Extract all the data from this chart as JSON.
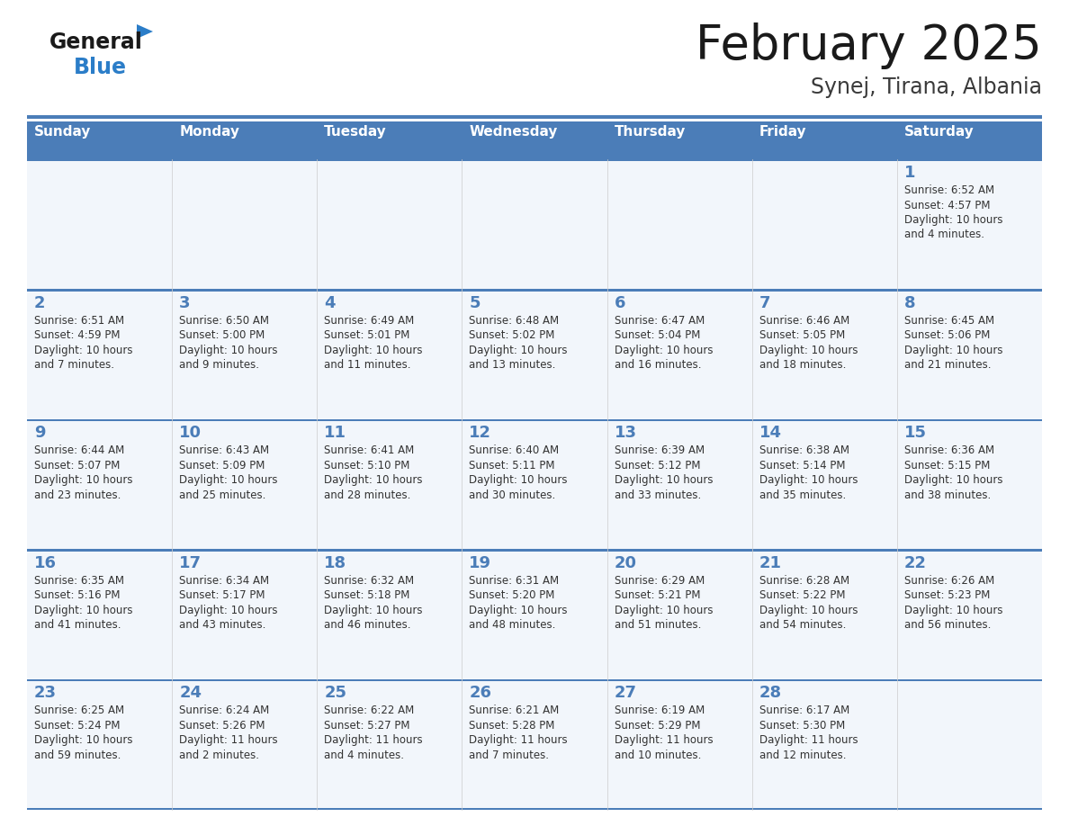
{
  "title": "February 2025",
  "subtitle": "Synej, Tirana, Albania",
  "days_of_week": [
    "Sunday",
    "Monday",
    "Tuesday",
    "Wednesday",
    "Thursday",
    "Friday",
    "Saturday"
  ],
  "header_bg": "#4b7db8",
  "header_text": "#ffffff",
  "cell_bg": "#f2f6fb",
  "border_color": "#4b7db8",
  "day_number_color": "#4b7db8",
  "text_color": "#333333",
  "logo_general_color": "#1a1a1a",
  "logo_blue_color": "#2b7dc8",
  "logo_triangle_color": "#2b7dc8",
  "calendar_data": [
    [
      null,
      null,
      null,
      null,
      null,
      null,
      {
        "day": "1",
        "sunrise": "6:52 AM",
        "sunset": "4:57 PM",
        "daylight": "10 hours",
        "daylight2": "and 4 minutes."
      }
    ],
    [
      {
        "day": "2",
        "sunrise": "6:51 AM",
        "sunset": "4:59 PM",
        "daylight": "10 hours",
        "daylight2": "and 7 minutes."
      },
      {
        "day": "3",
        "sunrise": "6:50 AM",
        "sunset": "5:00 PM",
        "daylight": "10 hours",
        "daylight2": "and 9 minutes."
      },
      {
        "day": "4",
        "sunrise": "6:49 AM",
        "sunset": "5:01 PM",
        "daylight": "10 hours",
        "daylight2": "and 11 minutes."
      },
      {
        "day": "5",
        "sunrise": "6:48 AM",
        "sunset": "5:02 PM",
        "daylight": "10 hours",
        "daylight2": "and 13 minutes."
      },
      {
        "day": "6",
        "sunrise": "6:47 AM",
        "sunset": "5:04 PM",
        "daylight": "10 hours",
        "daylight2": "and 16 minutes."
      },
      {
        "day": "7",
        "sunrise": "6:46 AM",
        "sunset": "5:05 PM",
        "daylight": "10 hours",
        "daylight2": "and 18 minutes."
      },
      {
        "day": "8",
        "sunrise": "6:45 AM",
        "sunset": "5:06 PM",
        "daylight": "10 hours",
        "daylight2": "and 21 minutes."
      }
    ],
    [
      {
        "day": "9",
        "sunrise": "6:44 AM",
        "sunset": "5:07 PM",
        "daylight": "10 hours",
        "daylight2": "and 23 minutes."
      },
      {
        "day": "10",
        "sunrise": "6:43 AM",
        "sunset": "5:09 PM",
        "daylight": "10 hours",
        "daylight2": "and 25 minutes."
      },
      {
        "day": "11",
        "sunrise": "6:41 AM",
        "sunset": "5:10 PM",
        "daylight": "10 hours",
        "daylight2": "and 28 minutes."
      },
      {
        "day": "12",
        "sunrise": "6:40 AM",
        "sunset": "5:11 PM",
        "daylight": "10 hours",
        "daylight2": "and 30 minutes."
      },
      {
        "day": "13",
        "sunrise": "6:39 AM",
        "sunset": "5:12 PM",
        "daylight": "10 hours",
        "daylight2": "and 33 minutes."
      },
      {
        "day": "14",
        "sunrise": "6:38 AM",
        "sunset": "5:14 PM",
        "daylight": "10 hours",
        "daylight2": "and 35 minutes."
      },
      {
        "day": "15",
        "sunrise": "6:36 AM",
        "sunset": "5:15 PM",
        "daylight": "10 hours",
        "daylight2": "and 38 minutes."
      }
    ],
    [
      {
        "day": "16",
        "sunrise": "6:35 AM",
        "sunset": "5:16 PM",
        "daylight": "10 hours",
        "daylight2": "and 41 minutes."
      },
      {
        "day": "17",
        "sunrise": "6:34 AM",
        "sunset": "5:17 PM",
        "daylight": "10 hours",
        "daylight2": "and 43 minutes."
      },
      {
        "day": "18",
        "sunrise": "6:32 AM",
        "sunset": "5:18 PM",
        "daylight": "10 hours",
        "daylight2": "and 46 minutes."
      },
      {
        "day": "19",
        "sunrise": "6:31 AM",
        "sunset": "5:20 PM",
        "daylight": "10 hours",
        "daylight2": "and 48 minutes."
      },
      {
        "day": "20",
        "sunrise": "6:29 AM",
        "sunset": "5:21 PM",
        "daylight": "10 hours",
        "daylight2": "and 51 minutes."
      },
      {
        "day": "21",
        "sunrise": "6:28 AM",
        "sunset": "5:22 PM",
        "daylight": "10 hours",
        "daylight2": "and 54 minutes."
      },
      {
        "day": "22",
        "sunrise": "6:26 AM",
        "sunset": "5:23 PM",
        "daylight": "10 hours",
        "daylight2": "and 56 minutes."
      }
    ],
    [
      {
        "day": "23",
        "sunrise": "6:25 AM",
        "sunset": "5:24 PM",
        "daylight": "10 hours",
        "daylight2": "and 59 minutes."
      },
      {
        "day": "24",
        "sunrise": "6:24 AM",
        "sunset": "5:26 PM",
        "daylight": "11 hours",
        "daylight2": "and 2 minutes."
      },
      {
        "day": "25",
        "sunrise": "6:22 AM",
        "sunset": "5:27 PM",
        "daylight": "11 hours",
        "daylight2": "and 4 minutes."
      },
      {
        "day": "26",
        "sunrise": "6:21 AM",
        "sunset": "5:28 PM",
        "daylight": "11 hours",
        "daylight2": "and 7 minutes."
      },
      {
        "day": "27",
        "sunrise": "6:19 AM",
        "sunset": "5:29 PM",
        "daylight": "11 hours",
        "daylight2": "and 10 minutes."
      },
      {
        "day": "28",
        "sunrise": "6:17 AM",
        "sunset": "5:30 PM",
        "daylight": "11 hours",
        "daylight2": "and 12 minutes."
      },
      null
    ]
  ]
}
